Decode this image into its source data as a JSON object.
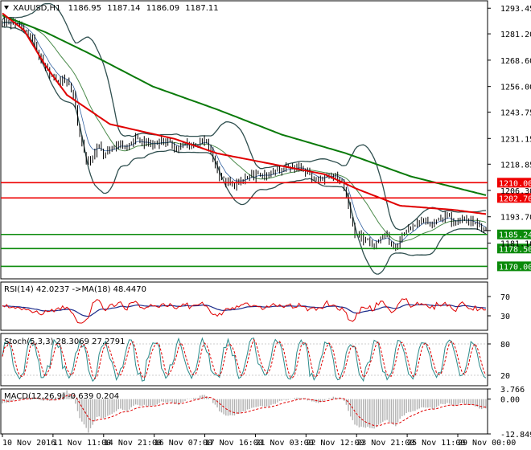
{
  "chart_data": {
    "type": "candlestick",
    "symbol_title": "XAUUSD,H1",
    "ohlc": [
      "1186.95",
      "1187.14",
      "1186.09",
      "1187.11"
    ],
    "ylim": [
      1164,
      1297
    ],
    "y_ticks": [
      "1293.45",
      "1281.20",
      "1268.60",
      "1256.00",
      "1243.75",
      "1231.15",
      "1218.85",
      "1206.30",
      "1193.70",
      "1181.10"
    ],
    "x_ticks": [
      "10 Nov 2016",
      "11 Nov 11:00",
      "14 Nov 21:00",
      "16 Nov 07:00",
      "17 Nov 16:00",
      "21 Nov 03:00",
      "22 Nov 12:00",
      "23 Nov 21:00",
      "25 Nov 11:00",
      "29 Nov 00:00"
    ],
    "current_price": "1187.11",
    "levels": [
      {
        "label": "1210.00",
        "value": 1210.0,
        "color": "#ee0000"
      },
      {
        "label": "1202.70",
        "value": 1202.7,
        "color": "#ee0000"
      },
      {
        "label": "1185.24",
        "value": 1185.24,
        "color": "#0a8a0a"
      },
      {
        "label": "1178.50",
        "value": 1178.5,
        "color": "#0a8a0a"
      },
      {
        "label": "1170.00",
        "value": 1170.0,
        "color": "#0a8a0a"
      }
    ],
    "price_path": [
      [
        0,
        1287
      ],
      [
        5,
        1286
      ],
      [
        10,
        1284
      ],
      [
        14,
        1278
      ],
      [
        18,
        1268
      ],
      [
        22,
        1262
      ],
      [
        26,
        1258
      ],
      [
        30,
        1259
      ],
      [
        33,
        1252
      ],
      [
        36,
        1232
      ],
      [
        38,
        1225
      ],
      [
        40,
        1218
      ],
      [
        42,
        1222
      ],
      [
        44,
        1228
      ],
      [
        47,
        1224
      ],
      [
        50,
        1225
      ],
      [
        54,
        1229
      ],
      [
        58,
        1227
      ],
      [
        62,
        1231
      ],
      [
        66,
        1229
      ],
      [
        70,
        1228
      ],
      [
        74,
        1230
      ],
      [
        78,
        1229
      ],
      [
        82,
        1226
      ],
      [
        86,
        1229
      ],
      [
        90,
        1228
      ],
      [
        94,
        1230
      ],
      [
        96,
        1227
      ],
      [
        98,
        1222
      ],
      [
        101,
        1214
      ],
      [
        104,
        1210
      ],
      [
        107,
        1209
      ],
      [
        110,
        1210
      ],
      [
        113,
        1212
      ],
      [
        116,
        1213
      ],
      [
        120,
        1214
      ],
      [
        124,
        1213
      ],
      [
        128,
        1216
      ],
      [
        132,
        1217
      ],
      [
        136,
        1218
      ],
      [
        140,
        1217
      ],
      [
        144,
        1213
      ],
      [
        147,
        1211
      ],
      [
        150,
        1213
      ],
      [
        154,
        1214
      ],
      [
        158,
        1211
      ],
      [
        160,
        1205
      ],
      [
        162,
        1194
      ],
      [
        164,
        1186
      ],
      [
        167,
        1183
      ],
      [
        170,
        1182
      ],
      [
        173,
        1180
      ],
      [
        176,
        1183
      ],
      [
        179,
        1185
      ],
      [
        181,
        1180
      ],
      [
        183,
        1178
      ],
      [
        186,
        1185
      ],
      [
        189,
        1188
      ],
      [
        192,
        1189
      ],
      [
        195,
        1192
      ],
      [
        198,
        1191
      ],
      [
        201,
        1190
      ],
      [
        204,
        1193
      ],
      [
        207,
        1194
      ],
      [
        210,
        1191
      ],
      [
        213,
        1193
      ],
      [
        216,
        1192
      ],
      [
        219,
        1191
      ],
      [
        223,
        1187
      ],
      [
        225,
        1187.11
      ]
    ],
    "bars_total": 225,
    "ma_slow": {
      "color": "#0a7a0a",
      "points": [
        [
          0,
          1290
        ],
        [
          20,
          1282
        ],
        [
          40,
          1272
        ],
        [
          70,
          1256
        ],
        [
          100,
          1245
        ],
        [
          130,
          1233
        ],
        [
          160,
          1224
        ],
        [
          190,
          1213
        ],
        [
          225,
          1204
        ]
      ]
    },
    "ma_fast": {
      "color": "#e00000",
      "points": [
        [
          0,
          1291
        ],
        [
          10,
          1283
        ],
        [
          20,
          1266
        ],
        [
          30,
          1252
        ],
        [
          50,
          1238
        ],
        [
          80,
          1231
        ],
        [
          100,
          1224
        ],
        [
          130,
          1218
        ],
        [
          150,
          1214
        ],
        [
          165,
          1207
        ],
        [
          185,
          1199
        ],
        [
          210,
          1197
        ],
        [
          225,
          1195
        ]
      ]
    },
    "rsi": {
      "title": "RSI(14) 42.0237  ->MA(18) 48.4470",
      "levels": [
        "70",
        "30"
      ],
      "ylim": [
        0,
        100
      ]
    },
    "stoch": {
      "title": "Stoch(5,3,3) 28.3069 27.2791",
      "levels": [
        "80",
        "20"
      ],
      "ylim": [
        0,
        100
      ]
    },
    "macd": {
      "title": "MACD(12,26,9) -0.639 0.204",
      "ticks": [
        "3.766",
        "0.00",
        "-12.849"
      ],
      "ylim": [
        -12.849,
        3.766
      ]
    }
  }
}
